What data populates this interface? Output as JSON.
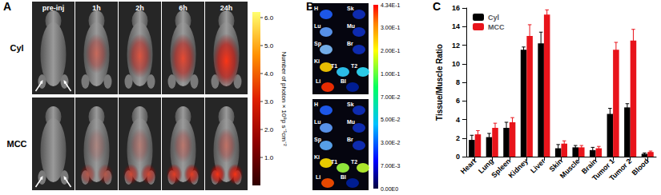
{
  "panel_labels": [
    "A",
    "B",
    "C"
  ],
  "panel_a": {
    "rows": [
      "Cyl",
      "MCC"
    ],
    "times": [
      "pre-inj",
      "1h",
      "2h",
      "6h",
      "24h"
    ],
    "colorbar": {
      "title": "Number of photon × 10⁸p s⁻¹cm⁻²",
      "ticks": [
        "1.0",
        "2.0",
        "3.0",
        "4.0",
        "5.0",
        "6.0"
      ]
    }
  },
  "panel_b": {
    "organs": [
      "H",
      "Sk",
      "Lu",
      "Mu",
      "Sp",
      "Br",
      "Ki",
      "T1",
      "T2",
      "Li",
      "Bl"
    ],
    "images": 2,
    "colorbar": {
      "ticks": [
        "0.00E0",
        "7.00E-3",
        "3.00E-2",
        "5.00E-2",
        "7.00E-2",
        "1.00E-1",
        "2.00E-1",
        "3.00E-1",
        "4.34E-1"
      ]
    }
  },
  "chart_data": {
    "type": "bar",
    "y_label": "Tissue/Muscle Ratio",
    "categories": [
      "Heart",
      "Lung",
      "Spleen",
      "Kidney",
      "Liver",
      "Skin",
      "Muscle",
      "Brain",
      "Tumor 1",
      "Tumor 2",
      "Blood"
    ],
    "series": [
      {
        "name": "Cyl",
        "color": "#000000",
        "values": [
          1.8,
          2.1,
          3.1,
          11.5,
          12.2,
          0.9,
          1.0,
          0.7,
          4.6,
          5.3,
          0.3
        ],
        "errors": [
          0.5,
          0.4,
          0.6,
          0.3,
          1.2,
          0.4,
          0.2,
          0.3,
          0.6,
          0.4,
          0.1
        ]
      },
      {
        "name": "MCC",
        "color": "#e8141b",
        "values": [
          2.4,
          3.1,
          3.7,
          13.0,
          15.3,
          1.4,
          1.0,
          0.9,
          11.5,
          12.5,
          0.5
        ],
        "errors": [
          0.4,
          0.5,
          0.5,
          1.2,
          0.5,
          0.3,
          0.2,
          0.2,
          0.8,
          1.2,
          0.1
        ]
      }
    ],
    "ylim": [
      0,
      16
    ],
    "yticks": [
      0,
      2,
      4,
      6,
      8,
      10,
      12,
      14,
      16
    ],
    "grid": false,
    "legend": "upper left"
  }
}
